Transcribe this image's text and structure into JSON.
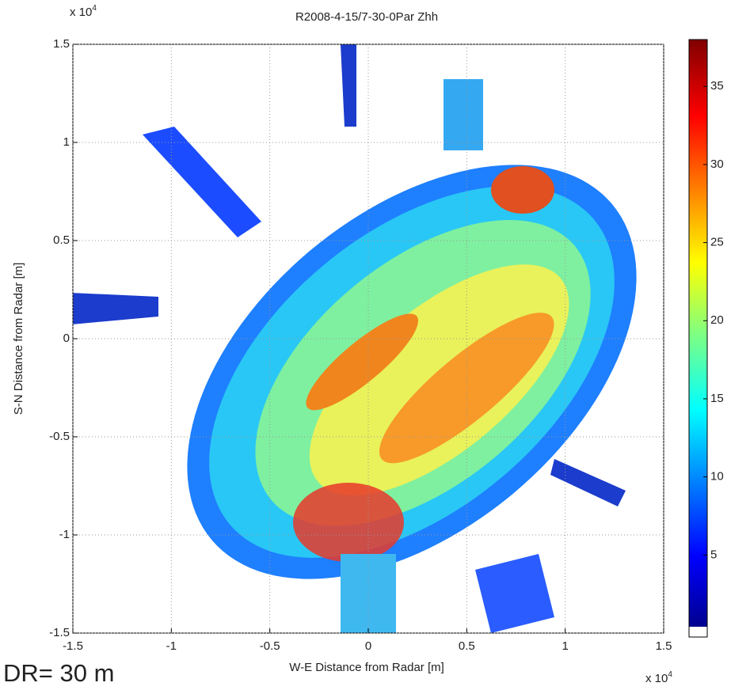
{
  "chart_data": {
    "type": "heatmap",
    "title": "R2008-4-15/7-30-0Par Zhh",
    "xlabel": "W-E Distance from Radar [m]",
    "ylabel": "S-N Distance from Radar [m]",
    "axis_multiplier": {
      "base": "x 10",
      "exponent": "4"
    },
    "xlim": [
      -15000,
      15000
    ],
    "ylim": [
      -15000,
      15000
    ],
    "xticks": [
      {
        "value": -15000,
        "label": "-1.5"
      },
      {
        "value": -10000,
        "label": "-1"
      },
      {
        "value": -5000,
        "label": "-0.5"
      },
      0,
      {
        "value": 5000,
        "label": "0.5"
      },
      {
        "value": 10000,
        "label": "1"
      },
      {
        "value": 15000,
        "label": "1.5"
      }
    ],
    "yticks": [
      {
        "value": -15000,
        "label": "-1.5"
      },
      {
        "value": -10000,
        "label": "-1"
      },
      {
        "value": -5000,
        "label": "-0.5"
      },
      0,
      {
        "value": 5000,
        "label": "0.5"
      },
      {
        "value": 10000,
        "label": "1"
      },
      {
        "value": 15000,
        "label": "1.5"
      }
    ],
    "grid": true,
    "colorbar": {
      "clim": [
        0,
        38
      ],
      "ticks": [
        5,
        10,
        15,
        20,
        25,
        30,
        35
      ]
    },
    "annotation": "DR= 30 m"
  }
}
